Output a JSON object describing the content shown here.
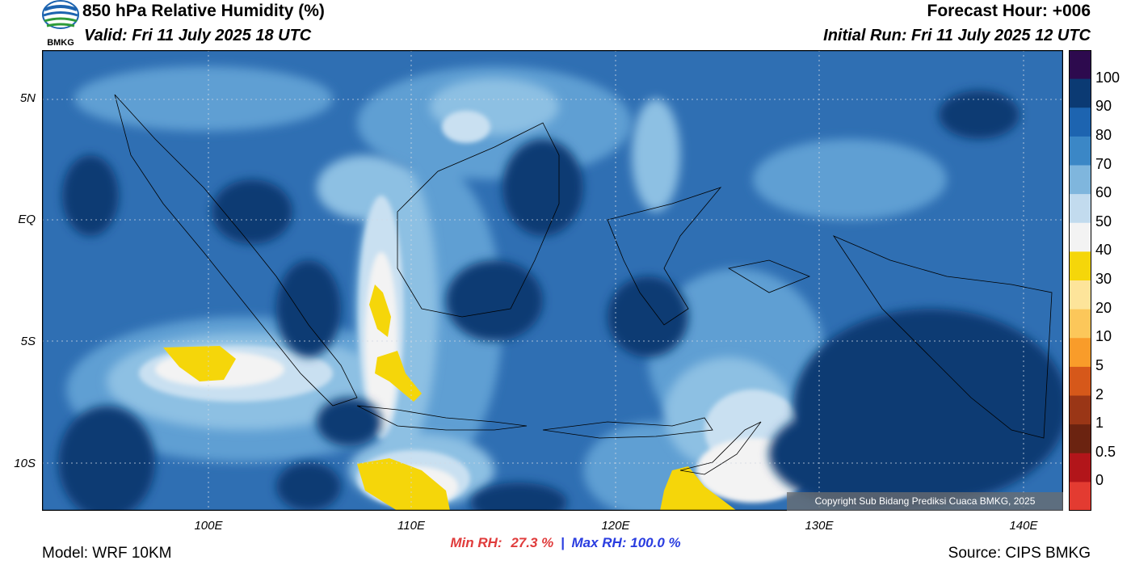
{
  "header": {
    "title": "850 hPa Relative Humidity (%)",
    "valid": "Valid: Fri 11 July 2025 18 UTC",
    "forecast_hour": "Forecast Hour: +006",
    "initial_run": "Initial Run: Fri 11 July 2025 12 UTC",
    "logo_text": "BMKG"
  },
  "axes": {
    "lat_labels": [
      "5N",
      "EQ",
      "5S",
      "10S"
    ],
    "lon_labels": [
      "100E",
      "110E",
      "120E",
      "130E",
      "140E"
    ]
  },
  "stats": {
    "min_label": "Min RH:",
    "min_value": "27.3 %",
    "separator": "|",
    "max_label": "Max RH:",
    "max_value": "100.0 %"
  },
  "footer": {
    "model": "Model: WRF 10KM",
    "source": "Source: CIPS BMKG",
    "copyright": "Copyright Sub Bidang Prediksi Cuaca BMKG, 2025"
  },
  "colorbar": {
    "labels": [
      "100",
      "90",
      "80",
      "70",
      "60",
      "50",
      "40",
      "30",
      "20",
      "10",
      "5",
      "2",
      "1",
      "0.5",
      "0"
    ],
    "colors": [
      "#2d0a4e",
      "#0b3a73",
      "#1d64b0",
      "#3b87c6",
      "#7fb6dd",
      "#c2dbee",
      "#f3f3f3",
      "#f5d60a",
      "#fde49a",
      "#fcc75a",
      "#f99c2a",
      "#d6581a",
      "#9a3616",
      "#6b2310",
      "#b2151a",
      "#e33b31"
    ]
  },
  "colors": {
    "background_sea": "#2f6fb3",
    "dark_blue": "#0b3a73",
    "mid_blue": "#1d64b0",
    "light_blue": "#7fb6dd",
    "very_light": "#c2dbee",
    "white": "#f3f3f3",
    "yellow": "#f5d60a"
  }
}
